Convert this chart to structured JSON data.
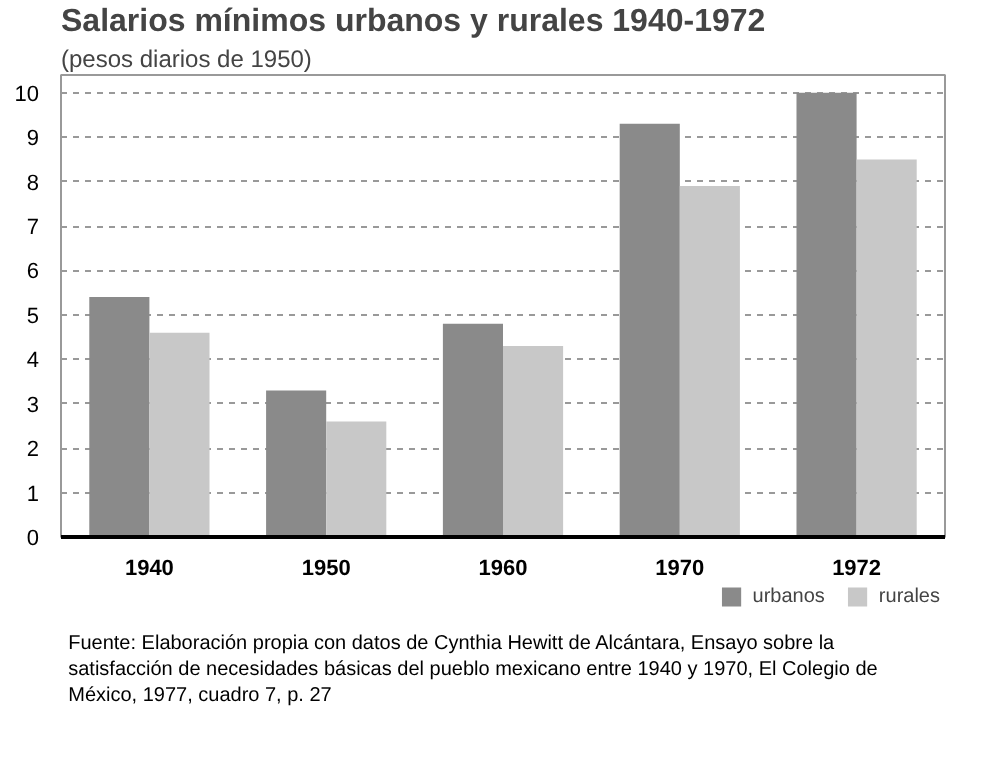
{
  "chart_data": {
    "type": "bar",
    "title": "Salarios mínimos urbanos y rurales 1940-1972",
    "subtitle": "(pesos diarios de 1950)",
    "categories": [
      "1940",
      "1950",
      "1960",
      "1970",
      "1972"
    ],
    "series": [
      {
        "name": "urbanos",
        "color": "#8a8a8a",
        "values": [
          5.4,
          3.3,
          4.8,
          9.3,
          10
        ]
      },
      {
        "name": "rurales",
        "color": "#c8c8c8",
        "values": [
          4.6,
          2.6,
          4.3,
          7.9,
          8.5
        ]
      }
    ],
    "ylim": [
      0,
      10.4
    ],
    "yticks": [
      0,
      1,
      2,
      3,
      4,
      5,
      6,
      7,
      8,
      9,
      10
    ],
    "grid": "y",
    "legend": "bottom right",
    "annotations": [
      "Fuente: Elaboración propia con datos de Cynthia Hewitt de Alcántara, Ensayo sobre la satisfacción de necesidades básicas del pueblo mexicano entre 1940 y 1970, El Colegio de México, 1977, cuadro 7, p. 27"
    ]
  }
}
